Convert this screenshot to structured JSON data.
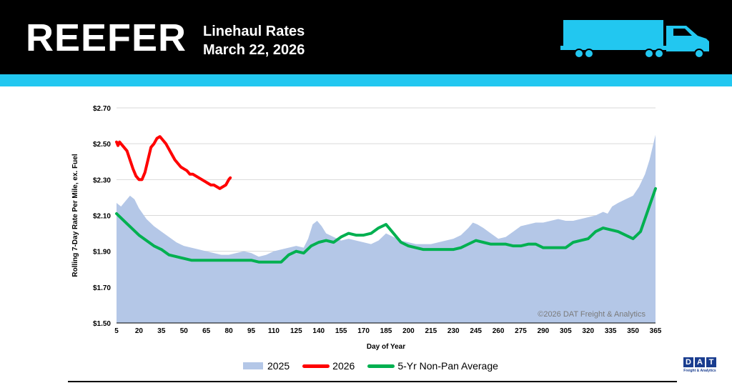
{
  "header": {
    "brand": "REEFER",
    "subtitle_line1": "Linehaul Rates",
    "subtitle_line2": "March 22, 2026",
    "truck_icon": "semi-truck-icon"
  },
  "colors": {
    "header_bg": "#000000",
    "accent": "#22c7f0",
    "series_2025": "#b4c7e7",
    "series_2026": "#ff0000",
    "series_avg": "#00b050"
  },
  "footer": {
    "logo_letters": [
      "D",
      "A",
      "T"
    ],
    "logo_tagline": "Freight & Analytics"
  },
  "chart_data": {
    "type": "line",
    "xlabel": "Day of Year",
    "ylabel": "Rolling 7-Day Rate Per Mile, ex. Fuel",
    "xlim": [
      5,
      365
    ],
    "ylim": [
      1.5,
      2.7
    ],
    "x_ticks": [
      5,
      20,
      35,
      50,
      65,
      80,
      95,
      110,
      125,
      140,
      155,
      170,
      185,
      200,
      215,
      230,
      245,
      260,
      275,
      290,
      305,
      320,
      335,
      350,
      365
    ],
    "y_ticks": [
      1.5,
      1.7,
      1.9,
      2.1,
      2.3,
      2.5,
      2.7
    ],
    "y_tick_labels": [
      "$1.50",
      "$1.70",
      "$1.90",
      "$2.10",
      "$2.30",
      "$2.50",
      "$2.70"
    ],
    "grid": "horizontal",
    "legend_position": "bottom",
    "watermark": "©2026 DAT Freight & Analytics",
    "series": [
      {
        "name": "2025",
        "style": "area",
        "x": [
          5,
          8,
          11,
          14,
          17,
          20,
          25,
          30,
          35,
          40,
          45,
          50,
          55,
          60,
          65,
          70,
          75,
          80,
          85,
          90,
          95,
          100,
          105,
          110,
          115,
          120,
          125,
          130,
          133,
          136,
          139,
          142,
          145,
          150,
          155,
          160,
          165,
          170,
          175,
          180,
          185,
          190,
          195,
          200,
          205,
          210,
          215,
          220,
          225,
          230,
          235,
          240,
          243,
          246,
          250,
          255,
          260,
          265,
          270,
          275,
          280,
          285,
          290,
          295,
          300,
          305,
          310,
          315,
          320,
          325,
          330,
          333,
          336,
          340,
          345,
          350,
          354,
          358,
          361,
          363,
          365
        ],
        "values": [
          2.17,
          2.15,
          2.18,
          2.21,
          2.19,
          2.14,
          2.08,
          2.04,
          2.01,
          1.98,
          1.95,
          1.93,
          1.92,
          1.91,
          1.9,
          1.89,
          1.88,
          1.88,
          1.89,
          1.9,
          1.89,
          1.87,
          1.88,
          1.9,
          1.91,
          1.92,
          1.93,
          1.92,
          1.97,
          2.05,
          2.07,
          2.04,
          2.0,
          1.98,
          1.96,
          1.97,
          1.96,
          1.95,
          1.94,
          1.96,
          2.0,
          1.98,
          1.96,
          1.95,
          1.94,
          1.94,
          1.94,
          1.95,
          1.96,
          1.97,
          1.99,
          2.03,
          2.06,
          2.05,
          2.03,
          2.0,
          1.97,
          1.98,
          2.01,
          2.04,
          2.05,
          2.06,
          2.06,
          2.07,
          2.08,
          2.07,
          2.07,
          2.08,
          2.09,
          2.1,
          2.12,
          2.11,
          2.15,
          2.17,
          2.19,
          2.21,
          2.26,
          2.33,
          2.41,
          2.48,
          2.55
        ]
      },
      {
        "name": "2026",
        "style": "line",
        "x": [
          5,
          6,
          7,
          8,
          10,
          12,
          14,
          16,
          18,
          20,
          22,
          24,
          26,
          28,
          30,
          32,
          34,
          36,
          38,
          40,
          42,
          44,
          46,
          48,
          50,
          52,
          54,
          56,
          58,
          60,
          62,
          64,
          66,
          68,
          70,
          72,
          74,
          76,
          78,
          80,
          81
        ],
        "values": [
          2.51,
          2.49,
          2.51,
          2.5,
          2.48,
          2.46,
          2.41,
          2.36,
          2.32,
          2.3,
          2.3,
          2.34,
          2.41,
          2.48,
          2.5,
          2.53,
          2.54,
          2.52,
          2.5,
          2.47,
          2.44,
          2.41,
          2.39,
          2.37,
          2.36,
          2.35,
          2.33,
          2.33,
          2.32,
          2.31,
          2.3,
          2.29,
          2.28,
          2.27,
          2.27,
          2.26,
          2.25,
          2.26,
          2.27,
          2.3,
          2.31
        ]
      },
      {
        "name": "5-Yr Non-Pan Average",
        "style": "line",
        "x": [
          5,
          10,
          15,
          20,
          25,
          30,
          35,
          40,
          45,
          50,
          55,
          60,
          65,
          70,
          75,
          80,
          85,
          90,
          95,
          100,
          105,
          110,
          115,
          120,
          125,
          130,
          135,
          140,
          145,
          150,
          155,
          160,
          165,
          170,
          175,
          180,
          185,
          190,
          195,
          200,
          205,
          210,
          215,
          220,
          225,
          230,
          235,
          240,
          245,
          250,
          255,
          260,
          265,
          270,
          275,
          280,
          285,
          290,
          295,
          300,
          305,
          310,
          315,
          320,
          325,
          330,
          335,
          340,
          345,
          350,
          355,
          360,
          365
        ],
        "values": [
          2.11,
          2.07,
          2.03,
          1.99,
          1.96,
          1.93,
          1.91,
          1.88,
          1.87,
          1.86,
          1.85,
          1.85,
          1.85,
          1.85,
          1.85,
          1.85,
          1.85,
          1.85,
          1.85,
          1.84,
          1.84,
          1.84,
          1.84,
          1.88,
          1.9,
          1.89,
          1.93,
          1.95,
          1.96,
          1.95,
          1.98,
          2.0,
          1.99,
          1.99,
          2.0,
          2.03,
          2.05,
          2.0,
          1.95,
          1.93,
          1.92,
          1.91,
          1.91,
          1.91,
          1.91,
          1.91,
          1.92,
          1.94,
          1.96,
          1.95,
          1.94,
          1.94,
          1.94,
          1.93,
          1.93,
          1.94,
          1.94,
          1.92,
          1.92,
          1.92,
          1.92,
          1.95,
          1.96,
          1.97,
          2.01,
          2.03,
          2.02,
          2.01,
          1.99,
          1.97,
          2.01,
          2.13,
          2.25
        ]
      }
    ]
  }
}
